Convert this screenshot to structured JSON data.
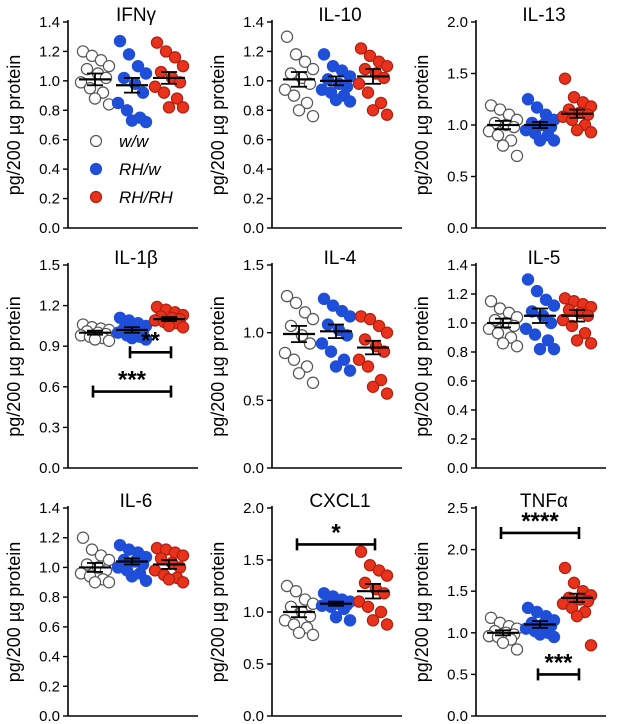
{
  "groups": {
    "ww": {
      "label": "w/w",
      "fill": "#ffffff",
      "stroke": "#555555"
    },
    "rhw": {
      "label": "RH/w",
      "fill": "#1f4fd8",
      "stroke": "#1f4fd8"
    },
    "rhrh": {
      "label": "RH/RH",
      "fill": "#e8321c",
      "stroke": "#b02010"
    }
  },
  "chart_data": [
    {
      "type": "scatter",
      "title": "IFNγ",
      "ylabel": "pg/200 µg protein",
      "ylim": [
        0,
        1.4
      ],
      "ticks": [
        "0.0",
        "0.2",
        "0.4",
        "0.6",
        "0.8",
        "1.0",
        "1.2",
        "1.4"
      ],
      "tick_values": [
        0,
        0.2,
        0.4,
        0.6,
        0.8,
        1.0,
        1.2,
        1.4
      ],
      "series": [
        {
          "group": "ww",
          "mean": 1.01,
          "sem": 0.04,
          "values": [
            1.2,
            1.17,
            1.14,
            1.1,
            1.08,
            1.05,
            1.02,
            0.99,
            0.95,
            0.92,
            0.88,
            0.84
          ]
        },
        {
          "group": "rhw",
          "mean": 0.97,
          "sem": 0.05,
          "values": [
            1.27,
            1.18,
            1.1,
            1.05,
            1.02,
            0.98,
            0.92,
            0.85,
            0.8,
            0.75,
            0.73,
            0.72
          ]
        },
        {
          "group": "rhrh",
          "mean": 1.02,
          "sem": 0.04,
          "values": [
            1.26,
            1.2,
            1.16,
            1.1,
            1.06,
            1.02,
            0.99,
            0.96,
            0.92,
            0.88,
            0.82,
            0.82
          ]
        }
      ],
      "legend": true,
      "sig": []
    },
    {
      "type": "scatter",
      "title": "IL-10",
      "ylabel": "pg/200 µg protein",
      "ylim": [
        0,
        1.4
      ],
      "ticks": [
        "0.0",
        "0.2",
        "0.4",
        "0.6",
        "0.8",
        "1.0",
        "1.2",
        "1.4"
      ],
      "tick_values": [
        0,
        0.2,
        0.4,
        0.6,
        0.8,
        1.0,
        1.2,
        1.4
      ],
      "series": [
        {
          "group": "ww",
          "mean": 1.01,
          "sem": 0.05,
          "values": [
            1.3,
            1.18,
            1.13,
            1.08,
            1.05,
            1.02,
            0.98,
            0.94,
            0.9,
            0.85,
            0.8,
            0.76
          ]
        },
        {
          "group": "rhw",
          "mean": 1.0,
          "sem": 0.03,
          "values": [
            1.18,
            1.1,
            1.07,
            1.03,
            1.01,
            0.98,
            0.96,
            0.94,
            0.92,
            0.9,
            0.87,
            0.86
          ]
        },
        {
          "group": "rhrh",
          "mean": 1.03,
          "sem": 0.05,
          "values": [
            1.22,
            1.17,
            1.13,
            1.1,
            1.08,
            1.05,
            1.02,
            0.98,
            0.92,
            0.85,
            0.8,
            0.77
          ]
        }
      ],
      "legend": false,
      "sig": []
    },
    {
      "type": "scatter",
      "title": "IL-13",
      "ylabel": "pg/200 µg protein",
      "ylim": [
        0,
        2.0
      ],
      "ticks": [
        "0.0",
        "0.5",
        "1.0",
        "1.5",
        "2.0"
      ],
      "tick_values": [
        0,
        0.5,
        1.0,
        1.5,
        2.0
      ],
      "series": [
        {
          "group": "ww",
          "mean": 1.0,
          "sem": 0.04,
          "values": [
            1.19,
            1.15,
            1.1,
            1.05,
            1.02,
            1.0,
            0.98,
            0.94,
            0.9,
            0.85,
            0.8,
            0.7
          ]
        },
        {
          "group": "rhw",
          "mean": 1.0,
          "sem": 0.03,
          "values": [
            1.25,
            1.17,
            1.1,
            1.05,
            1.02,
            1.0,
            0.98,
            0.95,
            0.92,
            0.9,
            0.85,
            0.85
          ]
        },
        {
          "group": "rhrh",
          "mean": 1.11,
          "sem": 0.04,
          "values": [
            1.45,
            1.27,
            1.22,
            1.18,
            1.15,
            1.12,
            1.1,
            1.08,
            1.05,
            1.0,
            0.95,
            0.93
          ]
        }
      ],
      "legend": false,
      "sig": []
    },
    {
      "type": "scatter",
      "title": "IL-1β",
      "ylabel": "pg/200 µg protein",
      "ylim": [
        0,
        1.5
      ],
      "ticks": [
        "0.0",
        "0.3",
        "0.6",
        "0.9",
        "1.2",
        "1.5"
      ],
      "tick_values": [
        0,
        0.3,
        0.6,
        0.9,
        1.2,
        1.5
      ],
      "series": [
        {
          "group": "ww",
          "mean": 1.0,
          "sem": 0.015,
          "values": [
            1.06,
            1.04,
            1.03,
            1.02,
            1.01,
            1.0,
            0.99,
            0.98,
            0.97,
            0.96,
            0.95,
            0.94
          ]
        },
        {
          "group": "rhw",
          "mean": 1.02,
          "sem": 0.02,
          "values": [
            1.11,
            1.09,
            1.07,
            1.05,
            1.03,
            1.02,
            1.01,
            1.0,
            0.98,
            0.97,
            0.96,
            0.95
          ]
        },
        {
          "group": "rhrh",
          "mean": 1.1,
          "sem": 0.015,
          "values": [
            1.19,
            1.17,
            1.15,
            1.13,
            1.12,
            1.11,
            1.1,
            1.09,
            1.08,
            1.07,
            1.05,
            1.04
          ]
        }
      ],
      "legend": false,
      "sig": [
        {
          "from": 1,
          "to": 2,
          "label": "**",
          "y": 0.855,
          "labelAbove": true
        },
        {
          "from": 0,
          "to": 2,
          "label": "***",
          "y": 0.565,
          "labelAbove": true
        }
      ]
    },
    {
      "type": "scatter",
      "title": "IL-4",
      "ylabel": "pg/200 µg protein",
      "ylim": [
        0,
        1.5
      ],
      "ticks": [
        "0.0",
        "0.5",
        "1.0",
        "1.5"
      ],
      "tick_values": [
        0,
        0.5,
        1.0,
        1.5
      ],
      "series": [
        {
          "group": "ww",
          "mean": 0.99,
          "sem": 0.06,
          "values": [
            1.27,
            1.22,
            1.15,
            1.1,
            1.05,
            0.98,
            0.92,
            0.85,
            0.8,
            0.75,
            0.7,
            0.63
          ]
        },
        {
          "group": "rhw",
          "mean": 1.01,
          "sem": 0.05,
          "values": [
            1.25,
            1.2,
            1.16,
            1.12,
            1.06,
            1.02,
            0.98,
            0.92,
            0.86,
            0.8,
            0.75,
            0.72
          ]
        },
        {
          "group": "rhrh",
          "mean": 0.89,
          "sem": 0.05,
          "values": [
            1.12,
            1.1,
            1.05,
            1.0,
            0.95,
            0.9,
            0.86,
            0.8,
            0.75,
            0.65,
            0.6,
            0.55
          ]
        }
      ],
      "legend": false,
      "sig": []
    },
    {
      "type": "scatter",
      "title": "IL-5",
      "ylabel": "pg/200 µg protein",
      "ylim": [
        0,
        1.4
      ],
      "ticks": [
        "0.0",
        "0.2",
        "0.4",
        "0.6",
        "0.8",
        "1.0",
        "1.2",
        "1.4"
      ],
      "tick_values": [
        0,
        0.2,
        0.4,
        0.6,
        0.8,
        1.0,
        1.2,
        1.4
      ],
      "series": [
        {
          "group": "ww",
          "mean": 1.0,
          "sem": 0.03,
          "values": [
            1.15,
            1.1,
            1.07,
            1.04,
            1.02,
            1.0,
            0.98,
            0.96,
            0.93,
            0.9,
            0.86,
            0.84
          ]
        },
        {
          "group": "rhw",
          "mean": 1.05,
          "sem": 0.05,
          "values": [
            1.3,
            1.22,
            1.16,
            1.12,
            1.08,
            1.05,
            1.0,
            0.96,
            0.92,
            0.88,
            0.82,
            0.82
          ]
        },
        {
          "group": "rhrh",
          "mean": 1.05,
          "sem": 0.04,
          "values": [
            1.17,
            1.15,
            1.13,
            1.11,
            1.09,
            1.07,
            1.05,
            1.02,
            0.98,
            0.93,
            0.88,
            0.86
          ]
        }
      ],
      "legend": false,
      "sig": []
    },
    {
      "type": "scatter",
      "title": "IL-6",
      "ylabel": "pg/200 µg protein",
      "ylim": [
        0,
        1.4
      ],
      "ticks": [
        "0.0",
        "0.2",
        "0.4",
        "0.6",
        "0.8",
        "1.0",
        "1.2",
        "1.4"
      ],
      "tick_values": [
        0,
        0.2,
        0.4,
        0.6,
        0.8,
        1.0,
        1.2,
        1.4
      ],
      "series": [
        {
          "group": "ww",
          "mean": 1.0,
          "sem": 0.03,
          "values": [
            1.2,
            1.12,
            1.08,
            1.05,
            1.02,
            1.0,
            0.98,
            0.96,
            0.94,
            0.92,
            0.9,
            0.9
          ]
        },
        {
          "group": "rhw",
          "mean": 1.04,
          "sem": 0.02,
          "values": [
            1.15,
            1.12,
            1.1,
            1.07,
            1.05,
            1.04,
            1.02,
            1.0,
            0.98,
            0.96,
            0.94,
            0.91
          ]
        },
        {
          "group": "rhrh",
          "mean": 1.02,
          "sem": 0.03,
          "values": [
            1.13,
            1.12,
            1.1,
            1.08,
            1.06,
            1.03,
            1.0,
            0.98,
            0.95,
            0.93,
            0.92,
            0.9
          ]
        }
      ],
      "legend": false,
      "sig": []
    },
    {
      "type": "scatter",
      "title": "CXCL1",
      "ylabel": "pg/200 µg protein",
      "ylim": [
        0,
        2.0
      ],
      "ticks": [
        "0.0",
        "0.5",
        "1.0",
        "1.5",
        "2.0"
      ],
      "tick_values": [
        0,
        0.5,
        1.0,
        1.5,
        2.0
      ],
      "series": [
        {
          "group": "ww",
          "mean": 1.0,
          "sem": 0.05,
          "values": [
            1.25,
            1.2,
            1.12,
            1.08,
            1.05,
            1.0,
            0.96,
            0.92,
            0.88,
            0.85,
            0.8,
            0.78
          ]
        },
        {
          "group": "rhw",
          "mean": 1.08,
          "sem": 0.02,
          "values": [
            1.18,
            1.15,
            1.12,
            1.1,
            1.09,
            1.08,
            1.07,
            1.06,
            1.05,
            1.03,
            0.95,
            0.92
          ]
        },
        {
          "group": "rhrh",
          "mean": 1.2,
          "sem": 0.07,
          "values": [
            1.58,
            1.45,
            1.4,
            1.35,
            1.28,
            1.22,
            1.18,
            1.1,
            1.05,
            1.0,
            0.92,
            0.88
          ]
        }
      ],
      "legend": false,
      "sig": [
        {
          "from": 0,
          "to": 2,
          "label": "*",
          "y": 1.65,
          "labelAbove": true
        }
      ]
    },
    {
      "type": "scatter",
      "title": "TNFα",
      "ylabel": "pg/200 µg protein",
      "ylim": [
        0,
        2.5
      ],
      "ticks": [
        "0.0",
        "0.5",
        "1.0",
        "1.5",
        "2.0",
        "2.5"
      ],
      "tick_values": [
        0,
        0.5,
        1.0,
        1.5,
        2.0,
        2.5
      ],
      "series": [
        {
          "group": "ww",
          "mean": 1.0,
          "sem": 0.03,
          "values": [
            1.18,
            1.12,
            1.08,
            1.05,
            1.02,
            1.0,
            0.98,
            0.96,
            0.95,
            0.92,
            0.88,
            0.8
          ]
        },
        {
          "group": "rhw",
          "mean": 1.1,
          "sem": 0.04,
          "values": [
            1.3,
            1.25,
            1.2,
            1.15,
            1.12,
            1.1,
            1.08,
            1.05,
            1.02,
            1.0,
            0.98,
            0.95
          ]
        },
        {
          "group": "rhrh",
          "mean": 1.42,
          "sem": 0.05,
          "values": [
            1.78,
            1.6,
            1.5,
            1.45,
            1.42,
            1.4,
            1.38,
            1.35,
            1.3,
            1.25,
            1.2,
            0.85
          ]
        }
      ],
      "legend": false,
      "sig": [
        {
          "from": 0,
          "to": 2,
          "label": "****",
          "y": 2.2,
          "labelAbove": true
        },
        {
          "from": 1,
          "to": 2,
          "label": "***",
          "y": 0.5,
          "labelAbove": true
        }
      ]
    }
  ]
}
